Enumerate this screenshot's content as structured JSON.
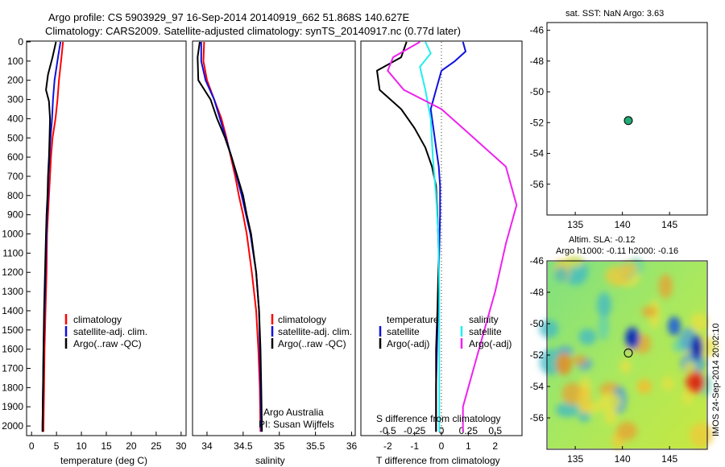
{
  "header": {
    "line1": "Argo profile: CS 5903929_97 16-Sep-2014 20140919_662 51.868S 140.627E",
    "line2": "Climatology: CARS2009. Satellite-adjusted climatology: synTS_20140917.nc (0.77d later)"
  },
  "colors": {
    "climatology": "#ff0000",
    "satellite": "#1010dd",
    "argo": "#000000",
    "s_satellite": "#22eeee",
    "s_argo": "#ee22ee"
  },
  "chart_data": [
    {
      "type": "line",
      "id": "temperature",
      "xlabel": "temperature (deg C)",
      "xlim": [
        -1,
        31
      ],
      "ylim": [
        0,
        2050
      ],
      "xticks": [
        "0",
        "5",
        "10",
        "15",
        "20",
        "25",
        "30"
      ],
      "yticks": [
        "0",
        "100",
        "200",
        "300",
        "400",
        "500",
        "600",
        "700",
        "800",
        "900",
        "1000",
        "1100",
        "1200",
        "1300",
        "1400",
        "1500",
        "1600",
        "1700",
        "1800",
        "1900",
        "2000"
      ],
      "legend": [
        "climatology",
        "satellite-adj. clim.",
        "Argo(..raw -QC)"
      ],
      "series": [
        {
          "name": "climatology",
          "color": "red",
          "points": [
            [
              6.3,
              0
            ],
            [
              6.0,
              80
            ],
            [
              5.5,
              200
            ],
            [
              5.2,
              300
            ],
            [
              4.8,
              400
            ],
            [
              4.2,
              500
            ],
            [
              3.9,
              600
            ],
            [
              3.7,
              700
            ],
            [
              3.5,
              800
            ],
            [
              3.3,
              900
            ],
            [
              3.1,
              1000
            ],
            [
              3.0,
              1200
            ],
            [
              2.8,
              1400
            ],
            [
              2.6,
              1600
            ],
            [
              2.5,
              1800
            ],
            [
              2.4,
              2000
            ],
            [
              2.4,
              2030
            ]
          ]
        },
        {
          "name": "satellite-adj. clim.",
          "color": "blue",
          "points": [
            [
              5.8,
              0
            ],
            [
              5.3,
              80
            ],
            [
              4.6,
              200
            ],
            [
              4.3,
              300
            ],
            [
              4.1,
              400
            ],
            [
              3.8,
              500
            ],
            [
              3.6,
              600
            ],
            [
              3.4,
              700
            ],
            [
              3.3,
              800
            ],
            [
              3.1,
              900
            ],
            [
              3.0,
              1000
            ],
            [
              2.8,
              1200
            ],
            [
              2.6,
              1400
            ],
            [
              2.4,
              1600
            ],
            [
              2.3,
              1800
            ],
            [
              2.2,
              2000
            ],
            [
              2.2,
              2030
            ]
          ]
        },
        {
          "name": "Argo(..raw -QC)",
          "color": "black",
          "points": [
            [
              4.9,
              0
            ],
            [
              4.2,
              80
            ],
            [
              3.3,
              170
            ],
            [
              2.9,
              250
            ],
            [
              3.5,
              310
            ],
            [
              3.7,
              400
            ],
            [
              3.6,
              500
            ],
            [
              3.5,
              600
            ],
            [
              3.3,
              700
            ],
            [
              3.2,
              800
            ],
            [
              3.0,
              900
            ],
            [
              2.9,
              1000
            ],
            [
              2.7,
              1200
            ],
            [
              2.5,
              1400
            ],
            [
              2.4,
              1600
            ],
            [
              2.3,
              1800
            ],
            [
              2.2,
              2000
            ],
            [
              2.2,
              2030
            ]
          ]
        }
      ]
    },
    {
      "type": "line",
      "id": "salinity",
      "xlabel": "salinity",
      "xlim": [
        33.8,
        36.05
      ],
      "ylim": [
        0,
        2050
      ],
      "xticks": [
        "34",
        "34.5",
        "35",
        "35.5",
        "36"
      ],
      "legend": [
        "climatology",
        "satellite-adj. clim.",
        "Argo(..raw -QC)"
      ],
      "annotation": [
        "Argo Australia",
        "PI: Susan Wijffels"
      ],
      "series": [
        {
          "name": "climatology",
          "color": "red",
          "points": [
            [
              33.96,
              0
            ],
            [
              33.95,
              100
            ],
            [
              34.0,
              200
            ],
            [
              34.1,
              300
            ],
            [
              34.2,
              400
            ],
            [
              34.27,
              500
            ],
            [
              34.33,
              600
            ],
            [
              34.39,
              700
            ],
            [
              34.44,
              800
            ],
            [
              34.5,
              900
            ],
            [
              34.55,
              1000
            ],
            [
              34.62,
              1200
            ],
            [
              34.68,
              1400
            ],
            [
              34.71,
              1600
            ],
            [
              34.73,
              1800
            ],
            [
              34.74,
              2030
            ]
          ]
        },
        {
          "name": "satellite-adj. clim.",
          "color": "blue",
          "points": [
            [
              33.92,
              0
            ],
            [
              33.92,
              100
            ],
            [
              33.98,
              200
            ],
            [
              34.1,
              300
            ],
            [
              34.18,
              400
            ],
            [
              34.26,
              500
            ],
            [
              34.34,
              600
            ],
            [
              34.41,
              700
            ],
            [
              34.48,
              800
            ],
            [
              34.54,
              900
            ],
            [
              34.6,
              1000
            ],
            [
              34.68,
              1200
            ],
            [
              34.72,
              1400
            ],
            [
              34.73,
              1600
            ],
            [
              34.74,
              1800
            ],
            [
              34.75,
              2030
            ]
          ]
        },
        {
          "name": "Argo(..raw -QC)",
          "color": "black",
          "points": [
            [
              33.9,
              0
            ],
            [
              33.87,
              80
            ],
            [
              33.88,
              200
            ],
            [
              34.05,
              300
            ],
            [
              34.14,
              400
            ],
            [
              34.25,
              500
            ],
            [
              34.34,
              600
            ],
            [
              34.42,
              700
            ],
            [
              34.5,
              800
            ],
            [
              34.55,
              900
            ],
            [
              34.61,
              1000
            ],
            [
              34.68,
              1200
            ],
            [
              34.72,
              1400
            ],
            [
              34.74,
              1600
            ],
            [
              34.75,
              1800
            ],
            [
              34.76,
              2030
            ]
          ]
        }
      ]
    },
    {
      "type": "line",
      "id": "differences",
      "xlabel": "T difference from climatology",
      "xlabel_top": "S difference from climatology",
      "xlim": [
        -3,
        3
      ],
      "ylim": [
        0,
        2050
      ],
      "xticks": [
        "-2",
        "-1",
        "0",
        "1",
        "2"
      ],
      "xticks_s": [
        "-0.5",
        "-0.25",
        "0",
        "0.25",
        "0.5"
      ],
      "legend": {
        "temperature": [
          "temperature",
          "satellite",
          "Argo(-adj)"
        ],
        "salinity": [
          "salinity",
          "satellite",
          "Argo(-adj)"
        ]
      },
      "series": [
        {
          "name": "satellite",
          "group": "temperature",
          "color": "blue",
          "points": [
            [
              0.8,
              0
            ],
            [
              0.9,
              50
            ],
            [
              0.5,
              100
            ],
            [
              0,
              150
            ],
            [
              -0.2,
              250
            ],
            [
              -0.4,
              350
            ],
            [
              -0.3,
              450
            ],
            [
              -0.2,
              550
            ],
            [
              -0.1,
              650
            ],
            [
              -0.05,
              750
            ],
            [
              -0.05,
              900
            ],
            [
              -0.1,
              1200
            ],
            [
              -0.15,
              1500
            ],
            [
              -0.2,
              1800
            ],
            [
              -0.2,
              2030
            ]
          ]
        },
        {
          "name": "Argo(-adj)",
          "group": "temperature",
          "color": "black",
          "points": [
            [
              -1.3,
              0
            ],
            [
              -1.5,
              80
            ],
            [
              -2.4,
              150
            ],
            [
              -2.3,
              250
            ],
            [
              -1.5,
              350
            ],
            [
              -1.0,
              450
            ],
            [
              -0.6,
              550
            ],
            [
              -0.35,
              650
            ],
            [
              -0.2,
              750
            ],
            [
              -0.15,
              900
            ],
            [
              -0.1,
              1100
            ],
            [
              -0.15,
              1400
            ],
            [
              -0.2,
              1600
            ],
            [
              -0.2,
              1800
            ],
            [
              -0.2,
              2030
            ]
          ]
        },
        {
          "name": "satellite",
          "group": "salinity",
          "color": "cyan",
          "points": [
            [
              -0.15,
              0
            ],
            [
              -0.1,
              60
            ],
            [
              -0.2,
              130
            ],
            [
              -0.15,
              250
            ],
            [
              -0.1,
              400
            ],
            [
              -0.08,
              600
            ],
            [
              -0.05,
              800
            ],
            [
              -0.03,
              1000
            ],
            [
              -0.02,
              1300
            ],
            [
              -0.02,
              1600
            ],
            [
              -0.02,
              2030
            ]
          ]
        },
        {
          "name": "Argo(-adj)",
          "group": "salinity",
          "color": "magenta",
          "points": [
            [
              -0.2,
              0
            ],
            [
              -0.45,
              80
            ],
            [
              -0.5,
              150
            ],
            [
              -0.35,
              250
            ],
            [
              0,
              350
            ],
            [
              0.2,
              450
            ],
            [
              0.6,
              650
            ],
            [
              0.7,
              850
            ],
            [
              0.6,
              1050
            ],
            [
              0.5,
              1300
            ],
            [
              0.4,
              1500
            ],
            [
              0.3,
              1700
            ],
            [
              0.2,
              1900
            ],
            [
              0.2,
              2030
            ]
          ]
        }
      ]
    },
    {
      "type": "scatter",
      "id": "sst_map",
      "title": "sat. SST: NaN Argo: 3.63",
      "xlim": [
        132,
        149
      ],
      "ylim": [
        -58,
        -45.5
      ],
      "xticks": [
        "135",
        "140",
        "145"
      ],
      "yticks": [
        "-46",
        "-48",
        "-50",
        "-52",
        "-54",
        "-56"
      ],
      "points": [
        [
          140.627,
          -51.868
        ]
      ]
    },
    {
      "type": "heatmap",
      "id": "sla_map",
      "title1": "Altim. SLA: -0.12",
      "title2": "Argo h1000: -0.11 h2000: -0.16",
      "xlim": [
        132,
        149
      ],
      "ylim": [
        -58,
        -46
      ],
      "xticks": [
        "135",
        "140",
        "145"
      ],
      "yticks": [
        "-46",
        "-48",
        "-50",
        "-52",
        "-54",
        "-56"
      ],
      "points": [
        [
          140.627,
          -51.868
        ]
      ]
    }
  ],
  "footer": {
    "side_label": "IMOS 24-Sep-2014 20:02:10"
  }
}
